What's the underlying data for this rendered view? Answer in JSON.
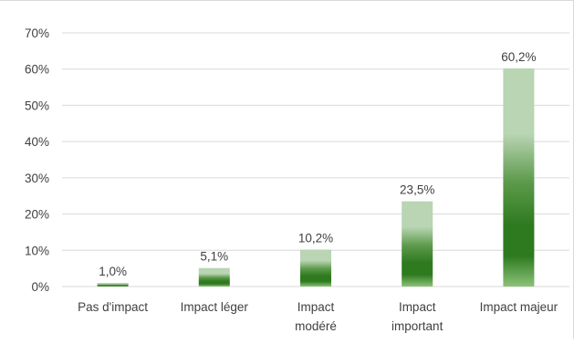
{
  "chart_data": {
    "type": "bar",
    "categories": [
      [
        "Pas d'impact"
      ],
      [
        "Impact léger"
      ],
      [
        "Impact",
        "modéré"
      ],
      [
        "Impact",
        "important"
      ],
      [
        "Impact majeur"
      ]
    ],
    "values": [
      1.0,
      5.1,
      10.2,
      23.5,
      60.2
    ],
    "data_labels": [
      "1,0%",
      "5,1%",
      "10,2%",
      "23,5%",
      "60,2%"
    ],
    "y_ticks": [
      "0%",
      "10%",
      "20%",
      "30%",
      "40%",
      "50%",
      "60%",
      "70%"
    ],
    "ylim": [
      0,
      70
    ],
    "title": "",
    "xlabel": "",
    "ylabel": "",
    "grid": true,
    "legend": false,
    "colors": {
      "bar_top": "#b9d5b3",
      "bar_mid": "#5d9a4c",
      "bar_dark": "#2e7a1f",
      "bar_bottom": "#8cc278",
      "gridline": "#d9d9d9",
      "text": "#404040"
    }
  }
}
